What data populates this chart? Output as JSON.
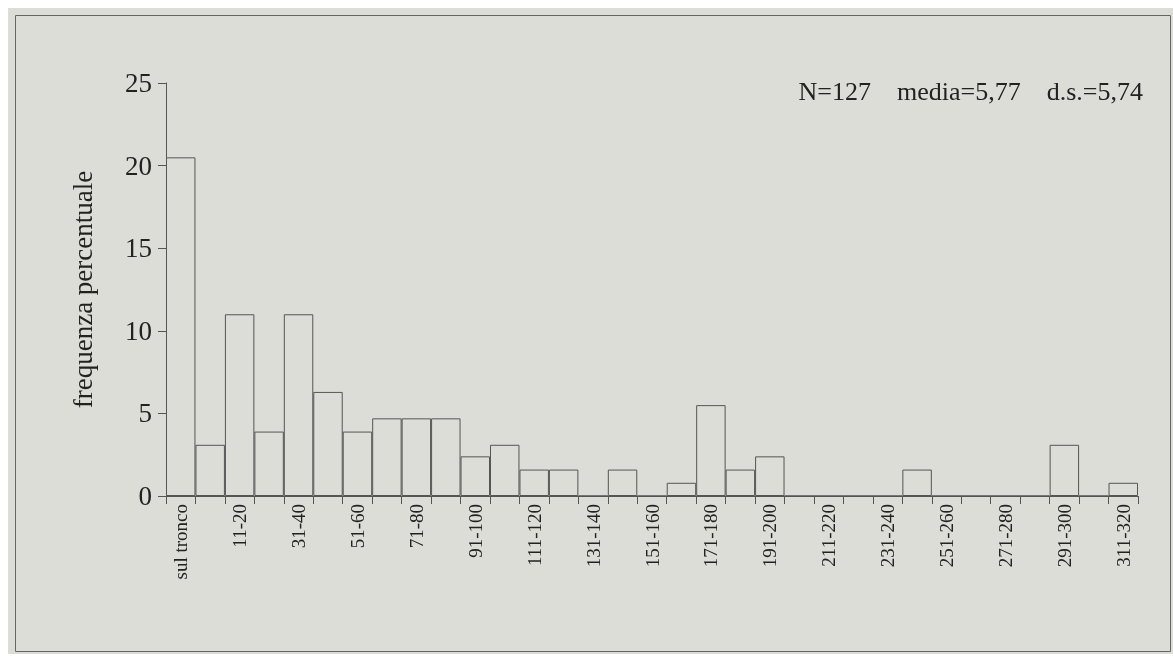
{
  "chart_data": {
    "type": "bar",
    "ylabel": "frequenza percentuale",
    "categories": [
      "sul tronco",
      null,
      "11-20",
      null,
      "31-40",
      null,
      "51-60",
      null,
      "71-80",
      null,
      "91-100",
      null,
      "111-120",
      null,
      "131-140",
      null,
      "151-160",
      null,
      "171-180",
      null,
      "191-200",
      null,
      "211-220",
      null,
      "231-240",
      null,
      "251-260",
      null,
      "271-280",
      null,
      "291-300",
      null,
      "311-320"
    ],
    "values": [
      20.5,
      3.1,
      11.0,
      3.9,
      11.0,
      6.3,
      3.9,
      4.7,
      4.7,
      4.7,
      2.4,
      3.1,
      1.6,
      1.6,
      0,
      1.6,
      0,
      0.8,
      5.5,
      1.6,
      2.4,
      0,
      0,
      0,
      0,
      1.6,
      0,
      0,
      0,
      0,
      3.1,
      0,
      0.8
    ],
    "color": "#dcddd6",
    "ylim": [
      0,
      25
    ],
    "yticks": [
      0,
      5,
      10,
      15,
      20,
      25
    ],
    "grid": false,
    "annotations": [
      "N=127    media=5,77    d.s.=5,74"
    ]
  }
}
